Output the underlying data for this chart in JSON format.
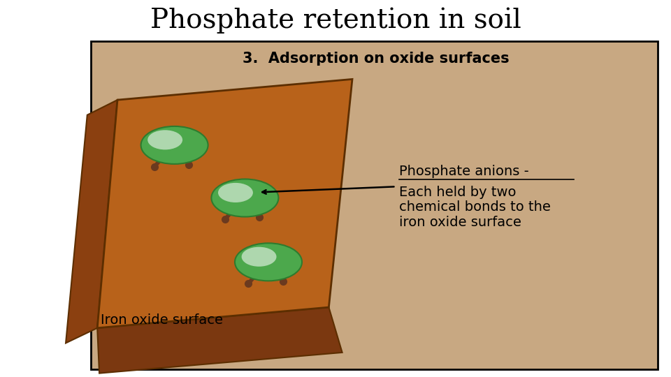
{
  "title": "Phosphate retention in soil",
  "subtitle": "3.  Adsorption on oxide surfaces",
  "label_iron": "Iron oxide surface",
  "label_phosphate": "Phosphate anions -",
  "label_phosphate_desc1": "Each held by two",
  "label_phosphate_desc2": "chemical bonds to the",
  "label_phosphate_desc3": "iron oxide surface",
  "bg_color": "#C8A882",
  "plate_face_color": "#B8621A",
  "plate_edge_color": "#5C2E00",
  "bond_color": "#6B3A1F",
  "sphere_outer_color": "#4CA84C",
  "sphere_highlight_color": "#FFFFFF",
  "title_fontsize": 28,
  "subtitle_fontsize": 15,
  "label_fontsize": 14,
  "annotation_fontsize": 14
}
